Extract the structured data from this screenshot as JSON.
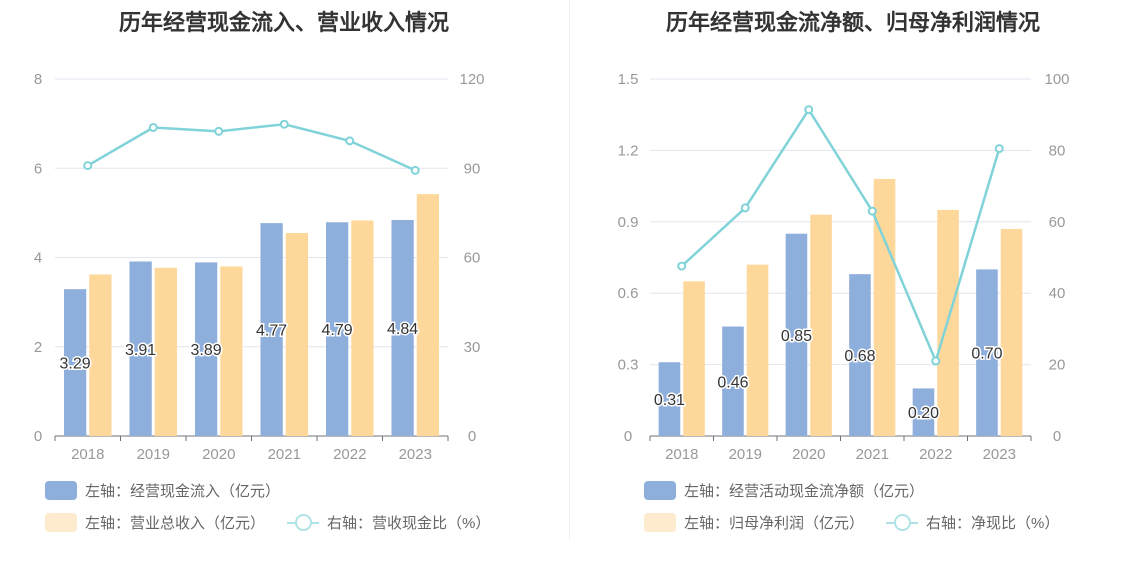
{
  "colors": {
    "bar_left": "#8eaedb",
    "bar_right": "#fed89b",
    "legend_bar_right": "#feebcd",
    "line": "#80d3d8",
    "legend_line": "#b0e3e6",
    "grid": "#e3e6ef",
    "axis_text": "#999999",
    "label_text": "#333333"
  },
  "chart_data": [
    {
      "type": "bar",
      "title": "历年经营现金流入、营业收入情况",
      "categories": [
        "2018",
        "2019",
        "2020",
        "2021",
        "2022",
        "2023"
      ],
      "left_axis": {
        "ylim": [
          0,
          8
        ],
        "ticks": [
          "0",
          "2",
          "4",
          "6",
          "8"
        ]
      },
      "right_axis": {
        "ylim": [
          0,
          120
        ],
        "ticks": [
          "0",
          "30",
          "60",
          "90",
          "120"
        ]
      },
      "series": [
        {
          "name": "左轴：经营现金流入（亿元）",
          "type": "bar",
          "axis": "left",
          "values": [
            3.29,
            3.91,
            3.89,
            4.77,
            4.79,
            4.84
          ],
          "labels": [
            "3.29",
            "3.91",
            "3.89",
            "4.77",
            "4.79",
            "4.84"
          ]
        },
        {
          "name": "左轴：营业总收入（亿元）",
          "type": "bar",
          "axis": "left",
          "values": [
            3.62,
            3.77,
            3.8,
            4.55,
            4.83,
            5.42
          ]
        },
        {
          "name": "右轴：营收现金比（%）",
          "type": "line",
          "axis": "right",
          "values": [
            90.9,
            103.7,
            102.4,
            104.8,
            99.2,
            89.3
          ]
        }
      ]
    },
    {
      "type": "bar",
      "title": "历年经营现金流净额、归母净利润情况",
      "categories": [
        "2018",
        "2019",
        "2020",
        "2021",
        "2022",
        "2023"
      ],
      "left_axis": {
        "ylim": [
          0,
          1.5
        ],
        "ticks": [
          "0",
          "0.3",
          "0.6",
          "0.9",
          "1.2",
          "1.5"
        ]
      },
      "right_axis": {
        "ylim": [
          0,
          100
        ],
        "ticks": [
          "0",
          "20",
          "40",
          "60",
          "80",
          "100"
        ]
      },
      "series": [
        {
          "name": "左轴：经营活动现金流净额（亿元）",
          "type": "bar",
          "axis": "left",
          "values": [
            0.31,
            0.46,
            0.85,
            0.68,
            0.2,
            0.7
          ],
          "labels": [
            "0.31",
            "0.46",
            "0.85",
            "0.68",
            "0.20",
            "0.70"
          ]
        },
        {
          "name": "左轴：归母净利润（亿元）",
          "type": "bar",
          "axis": "left",
          "values": [
            0.65,
            0.72,
            0.93,
            1.08,
            0.95,
            0.87
          ]
        },
        {
          "name": "右轴：净现比（%）",
          "type": "line",
          "axis": "right",
          "values": [
            47.6,
            63.9,
            91.4,
            63.0,
            21.0,
            80.5
          ]
        }
      ]
    }
  ]
}
